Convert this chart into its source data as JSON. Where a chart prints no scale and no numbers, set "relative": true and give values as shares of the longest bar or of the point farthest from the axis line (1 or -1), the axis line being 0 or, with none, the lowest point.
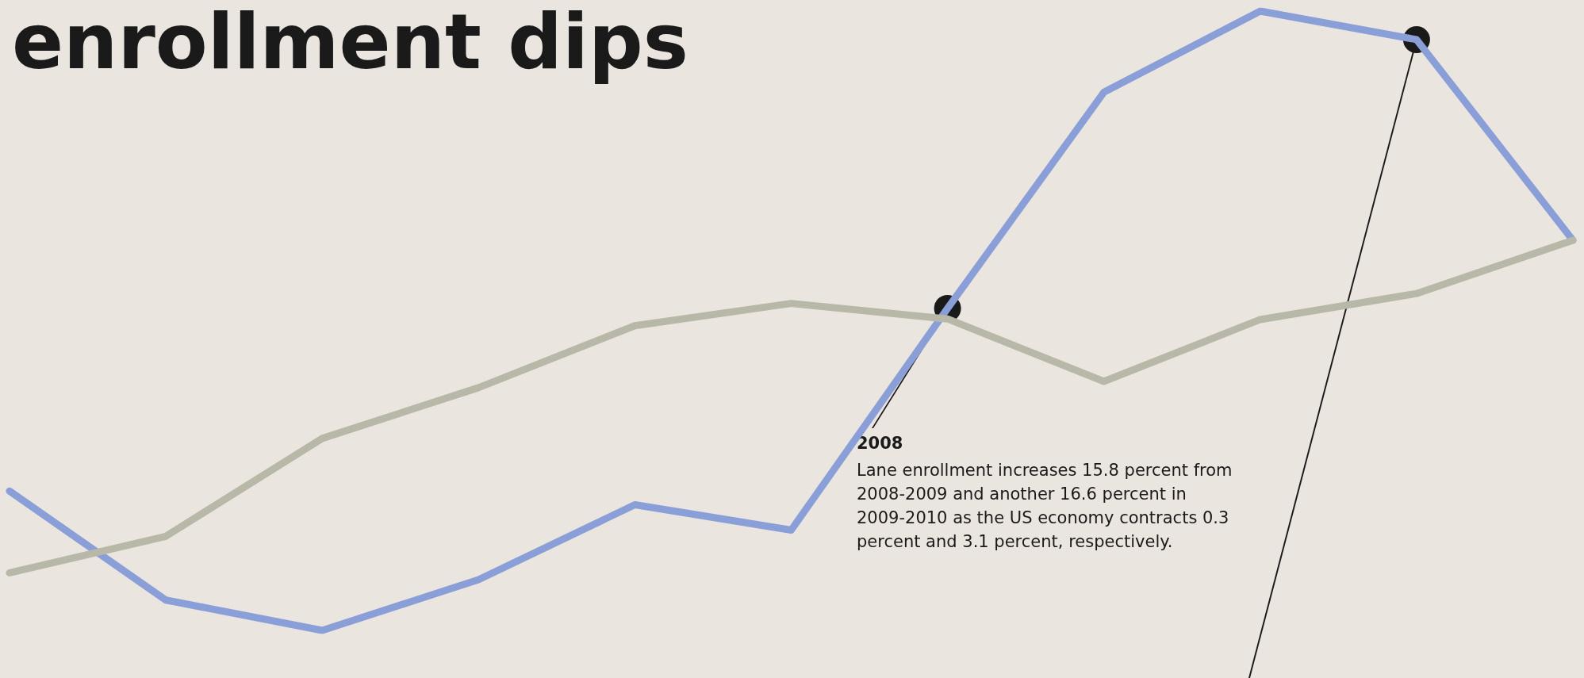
{
  "chart_data": {
    "type": "line",
    "title": "enrollment dips",
    "relative": true,
    "categories": [
      null,
      null,
      null,
      null,
      null,
      null,
      null,
      null,
      null,
      null,
      null
    ],
    "series": [
      {
        "color": "#8a9fd8",
        "values": [
          0.225,
          0.049,
          0,
          0.082,
          0.203,
          0.162,
          0.52,
          0.869,
          1,
          0.954,
          0.63
        ]
      },
      {
        "color": "#b8b8a8",
        "values": [
          0.093,
          0.152,
          0.31,
          0.392,
          0.492,
          0.528,
          0.503,
          0.402,
          0.502,
          0.544,
          0.63
        ]
      }
    ],
    "annotations": [
      "2008",
      "Lane enrollment increases 15.8 percent from 2008-2009 and another 16.6 percent in 2009-2010 as the US economy contracts 0.3 percent and 3.1 percent, respectively."
    ],
    "marker": "none",
    "line_style": "solid",
    "grid": false
  }
}
